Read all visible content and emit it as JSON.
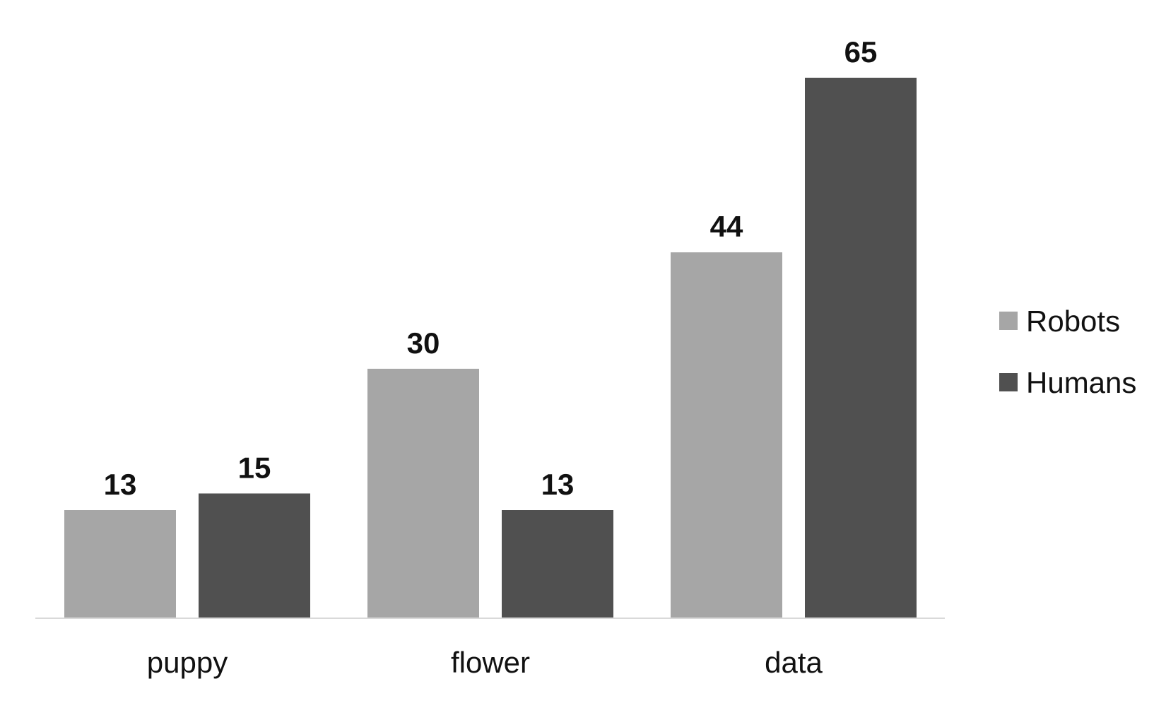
{
  "chart_data": {
    "type": "bar",
    "categories": [
      "puppy",
      "flower",
      "data"
    ],
    "series": [
      {
        "name": "Robots",
        "values": [
          13,
          30,
          44
        ],
        "color": "#a6a6a6"
      },
      {
        "name": "Humans",
        "values": [
          15,
          13,
          65
        ],
        "color": "#505050"
      }
    ],
    "title": "",
    "xlabel": "",
    "ylabel": "",
    "ylim": [
      0,
      65
    ],
    "grid": false,
    "legend_position": "right",
    "data_labels": true,
    "axis_color": "#d9d9d9"
  }
}
